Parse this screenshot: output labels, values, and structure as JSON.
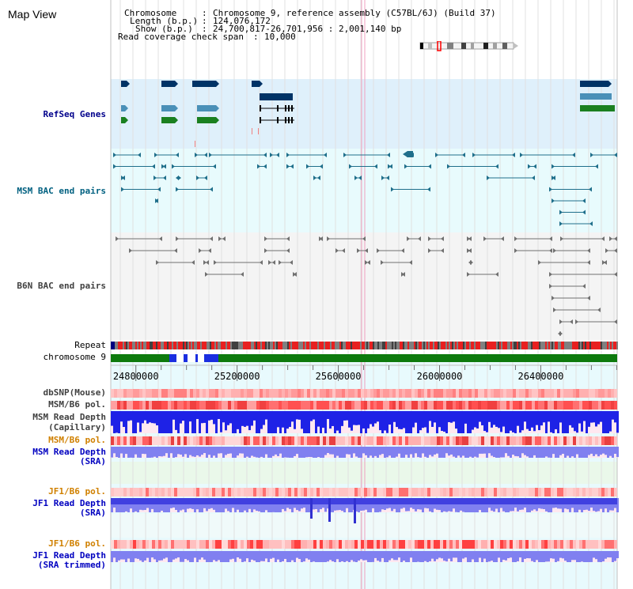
{
  "view": {
    "title": "Map View",
    "info": {
      "chromosome_key": "Chromosome",
      "chromosome_val": "Chromosome 9, reference assembly (C57BL/6J) (Build 37)",
      "length_key": "Length (b.p.)",
      "length_val": "124,076,172",
      "show_key": "Show (b.p.)",
      "show_val": "24,700,817-26,701,956 : 2,001,140 bp",
      "coverage_key": "Read coverage check span",
      "coverage_val": "10,000"
    }
  },
  "tracks": {
    "refseq": "RefSeq Genes",
    "msm_bac": "MSM BAC end pairs",
    "b6n_bac": "B6N BAC end pairs",
    "repeat": "Repeat",
    "chromosome": "chromosome 9",
    "dbsnp": "dbSNP(Mouse)",
    "msm_b6_pol_1": "MSM/B6 pol.",
    "msm_read_depth_cap_1": "MSM Read Depth",
    "msm_read_depth_cap_2": "(Capillary)",
    "msm_b6_pol_2": "MSM/B6 pol.",
    "msm_read_depth_sra_1": "MSM Read Depth",
    "msm_read_depth_sra_2": "(SRA)",
    "jf1_b6_pol_1": "JF1/B6 pol.",
    "jf1_read_depth_sra_1": "JF1 Read Depth",
    "jf1_read_depth_sra_2": "(SRA)",
    "jf1_b6_pol_2": "JF1/B6 pol.",
    "jf1_read_depth_trim_1": "JF1 Read Depth",
    "jf1_read_depth_trim_2": "(SRA trimmed)"
  },
  "axis": {
    "ticks": [
      "24800000",
      "25200000",
      "25600000",
      "26000000",
      "26400000"
    ],
    "tick_values": [
      24800000,
      25200000,
      25600000,
      26000000,
      26400000
    ],
    "range": [
      24700817,
      26701956
    ]
  },
  "colors": {
    "refseq_bg": "#dff0fb",
    "msm_bg": "#e8fbfd",
    "b6n_bg": "#f4f4f4",
    "navy": "#003366",
    "steel": "#4a90b8",
    "green": "#1a8020",
    "teal_line": "#1f6f8b",
    "gray_line": "#707070",
    "chrom_green": "#0d7a0d",
    "chrom_blue": "#1a2ee0",
    "depth_blue": "#1e22e6",
    "depth_light": "#8080f0",
    "pol_red": "#ff6060",
    "pol_pink": "#ffc0c0"
  }
}
